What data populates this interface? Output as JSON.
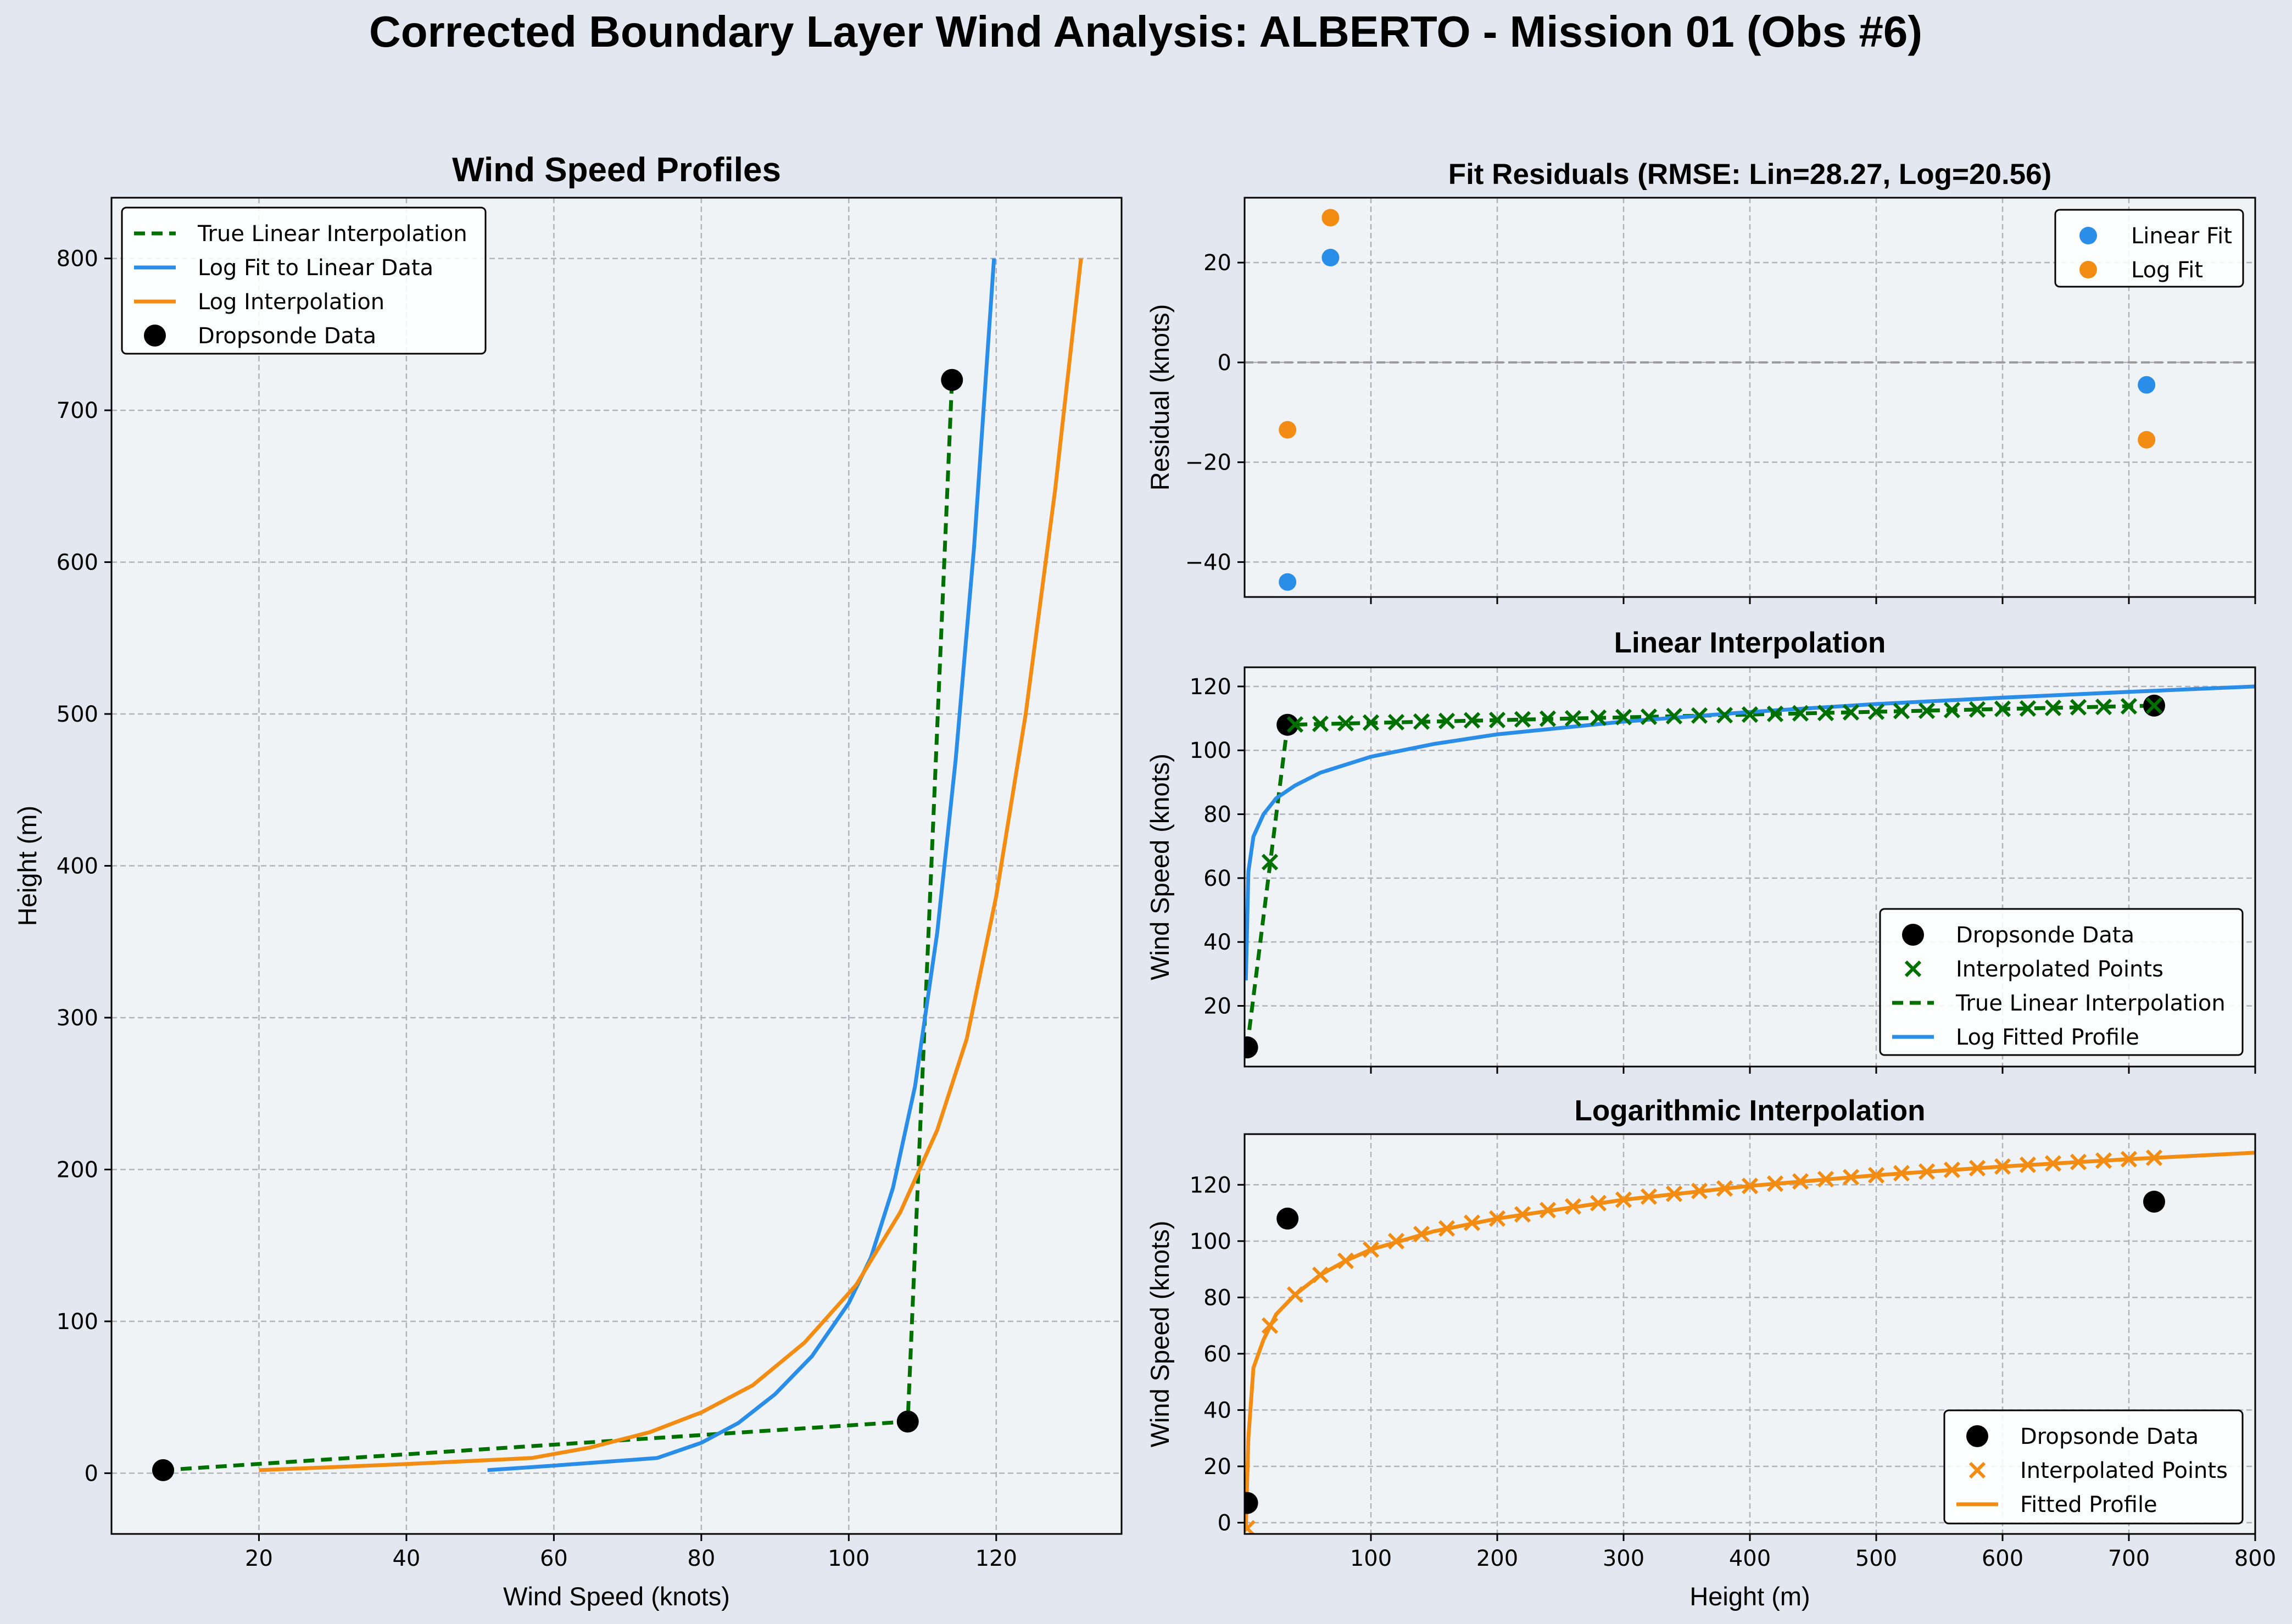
{
  "figure": {
    "title": "Corrected Boundary Layer Wind Analysis: ALBERTO - Mission 01 (Obs #6)",
    "background": "#e3e7ef",
    "axes_background": "#eff3f6",
    "colors": {
      "linear": "#007000",
      "log_fit": "#2a8ee8",
      "log_interp": "#f28c12",
      "dropsonde": "#000000",
      "grid": "#b0b4ba"
    }
  },
  "chart_data": [
    {
      "id": "profiles",
      "type": "line",
      "title": "Wind Speed Profiles",
      "xlabel": "Wind Speed (knots)",
      "ylabel": "Height (m)",
      "xlim": [
        0,
        137
      ],
      "ylim": [
        -40,
        840
      ],
      "xticks": [
        20,
        40,
        60,
        80,
        100,
        120
      ],
      "yticks": [
        0,
        100,
        200,
        300,
        400,
        500,
        600,
        700,
        800
      ],
      "grid": true,
      "legend_position": "upper left",
      "series": [
        {
          "name": "True Linear Interpolation",
          "kind": "line",
          "style": "dashed",
          "color": "#007000",
          "x": [
            7,
            108,
            114
          ],
          "y": [
            2,
            34,
            720
          ]
        },
        {
          "name": "Log Fit to Linear Data",
          "kind": "line",
          "color": "#2a8ee8",
          "x": [
            51,
            60,
            74,
            80,
            85,
            90,
            95,
            100,
            103,
            106,
            109,
            112,
            114.5,
            117,
            119.7
          ],
          "y": [
            2,
            5,
            10,
            20,
            33,
            52,
            77,
            112,
            142,
            188,
            255,
            356,
            470,
            610,
            800
          ]
        },
        {
          "name": "Log Interpolation",
          "kind": "line",
          "color": "#f28c12",
          "x": [
            20,
            40,
            57,
            65,
            73,
            80,
            87,
            94,
            101,
            107,
            112,
            116,
            120,
            124,
            128,
            131.5
          ],
          "y": [
            2,
            6,
            10,
            17,
            27,
            40,
            58,
            86,
            124,
            172,
            226,
            286,
            380,
            500,
            648,
            800
          ]
        },
        {
          "name": "Dropsonde Data",
          "kind": "scatter",
          "color": "#000000",
          "x": [
            7,
            108,
            114
          ],
          "y": [
            2,
            34,
            720
          ]
        }
      ]
    },
    {
      "id": "residuals",
      "type": "scatter",
      "title": "Fit Residuals (RMSE: Lin=28.27, Log=20.56)",
      "xlabel": "",
      "ylabel": "Residual (knots)",
      "xlim": [
        0,
        800
      ],
      "ylim": [
        -47,
        33
      ],
      "yticks": [
        -40,
        -20,
        0,
        20
      ],
      "grid": true,
      "legend_position": "upper right",
      "series": [
        {
          "name": "Linear Fit",
          "color": "#2a8ee8",
          "x": [
            34,
            68,
            714
          ],
          "y": [
            -44,
            21,
            -4.5
          ]
        },
        {
          "name": "Log Fit",
          "color": "#f28c12",
          "x": [
            34,
            68,
            714
          ],
          "y": [
            -13.5,
            29,
            -15.5
          ]
        }
      ]
    },
    {
      "id": "linear",
      "type": "line",
      "title": "Linear Interpolation",
      "xlabel": "",
      "ylabel": "Wind Speed (knots)",
      "xlim": [
        0,
        800
      ],
      "ylim": [
        1,
        126
      ],
      "yticks": [
        20,
        40,
        60,
        80,
        100,
        120
      ],
      "grid": true,
      "legend_position": "lower right",
      "series": [
        {
          "name": "Dropsonde Data",
          "kind": "scatter",
          "color": "#000000",
          "x": [
            2,
            34,
            720
          ],
          "y": [
            7,
            108,
            114
          ]
        },
        {
          "name": "Interpolated Points",
          "kind": "cross",
          "color": "#007000",
          "x": [
            20,
            40,
            60,
            80,
            100,
            120,
            140,
            160,
            180,
            200,
            220,
            240,
            260,
            280,
            300,
            320,
            340,
            360,
            380,
            400,
            420,
            440,
            460,
            480,
            500,
            520,
            540,
            560,
            580,
            600,
            620,
            640,
            660,
            680,
            700,
            720
          ],
          "y": [
            65,
            108.1,
            108.3,
            108.5,
            108.7,
            108.8,
            109,
            109.2,
            109.4,
            109.5,
            109.7,
            109.9,
            110,
            110.2,
            110.4,
            110.5,
            110.7,
            110.9,
            111,
            111.2,
            111.4,
            111.6,
            111.7,
            111.9,
            112.1,
            112.3,
            112.4,
            112.6,
            112.8,
            113,
            113.1,
            113.3,
            113.5,
            113.6,
            113.8,
            114
          ]
        },
        {
          "name": "True Linear Interpolation",
          "kind": "line",
          "style": "dashed",
          "color": "#007000",
          "x": [
            2,
            34,
            720
          ],
          "y": [
            7,
            108,
            114
          ]
        },
        {
          "name": "Log Fitted Profile",
          "kind": "line",
          "color": "#2a8ee8",
          "x": [
            1,
            3,
            7,
            15,
            25,
            40,
            60,
            100,
            150,
            200,
            300,
            400,
            500,
            600,
            700,
            800
          ],
          "y": [
            28,
            62,
            73,
            80,
            85,
            89,
            93,
            98,
            102,
            105,
            109,
            112,
            114.5,
            116.5,
            118.3,
            120
          ]
        }
      ]
    },
    {
      "id": "logarithmic",
      "type": "line",
      "title": "Logarithmic Interpolation",
      "xlabel": "Height (m)",
      "ylabel": "Wind Speed (knots)",
      "xlim": [
        0,
        800
      ],
      "ylim": [
        -4,
        138
      ],
      "xticks": [
        100,
        200,
        300,
        400,
        500,
        600,
        700,
        800
      ],
      "yticks": [
        0,
        20,
        40,
        60,
        80,
        100,
        120
      ],
      "grid": true,
      "legend_position": "lower right",
      "series": [
        {
          "name": "Dropsonde Data",
          "kind": "scatter",
          "color": "#000000",
          "x": [
            2,
            34,
            720
          ],
          "y": [
            7,
            108,
            114
          ]
        },
        {
          "name": "Interpolated Points",
          "kind": "cross",
          "color": "#f28c12",
          "x": [
            2,
            20,
            40,
            60,
            80,
            100,
            120,
            140,
            160,
            180,
            200,
            220,
            240,
            260,
            280,
            300,
            320,
            340,
            360,
            380,
            400,
            420,
            440,
            460,
            480,
            500,
            520,
            540,
            560,
            580,
            600,
            620,
            640,
            660,
            680,
            700,
            720
          ],
          "y": [
            -2,
            70,
            81,
            88,
            93,
            97,
            100,
            102.5,
            104.5,
            106.5,
            108,
            109.5,
            111,
            112.3,
            113.5,
            114.7,
            115.8,
            116.8,
            117.8,
            118.7,
            119.6,
            120.4,
            121.2,
            122,
            122.7,
            123.4,
            124.1,
            124.7,
            125.3,
            125.9,
            126.5,
            127.1,
            127.6,
            128.1,
            128.6,
            129.1,
            129.6
          ]
        },
        {
          "name": "Fitted Profile",
          "kind": "line",
          "color": "#f28c12",
          "x": [
            1,
            3,
            7,
            15,
            25,
            40,
            60,
            80,
            100,
            150,
            200,
            300,
            400,
            500,
            600,
            700,
            800
          ],
          "y": [
            -2,
            30,
            55,
            65,
            74,
            81,
            88,
            93,
            97,
            103.5,
            108,
            114.7,
            119.6,
            123.4,
            126.5,
            129.1,
            131.4
          ]
        }
      ]
    }
  ]
}
